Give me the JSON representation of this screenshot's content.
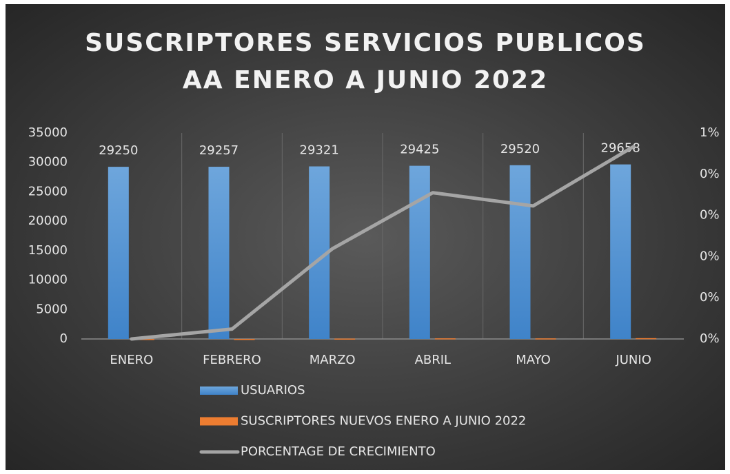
{
  "chart_data": {
    "type": "bar",
    "title": "SUSCRIPTORES SERVICIOS PUBLICOS AA ENERO A JUNIO 2022",
    "categories": [
      "ENERO",
      "FEBRERO",
      "MARZO",
      "ABRIL",
      "MAYO",
      "JUNIO"
    ],
    "series": [
      {
        "name": "USUARIOS",
        "color": "#5b9bd5",
        "type": "bar",
        "values": [
          29250,
          29257,
          29321,
          29425,
          29520,
          29658
        ]
      },
      {
        "name": "SUSCRIPTORES NUEVOS ENERO A JUNIO 2022",
        "color": "#ed7d31",
        "type": "bar",
        "values": [
          0,
          7,
          64,
          104,
          95,
          138
        ]
      },
      {
        "name": "PORCENTAGE DE CRECIMIENTO",
        "color": "#a5a5a5",
        "type": "line",
        "axis": "y2",
        "values": [
          0,
          0.024,
          0.219,
          0.355,
          0.323,
          0.467
        ]
      }
    ],
    "ylim": [
      0,
      35000
    ],
    "yticks": [
      0,
      5000,
      10000,
      15000,
      20000,
      25000,
      30000,
      35000
    ],
    "y2lim": [
      0,
      0.5
    ],
    "y2ticks": [
      {
        "value": 0,
        "label": "0%"
      },
      {
        "value": 0.1,
        "label": "0%"
      },
      {
        "value": 0.2,
        "label": "0%"
      },
      {
        "value": 0.3,
        "label": "0%"
      },
      {
        "value": 0.4,
        "label": "0%"
      },
      {
        "value": 0.5,
        "label": "1%"
      }
    ],
    "legend": "bottom"
  }
}
